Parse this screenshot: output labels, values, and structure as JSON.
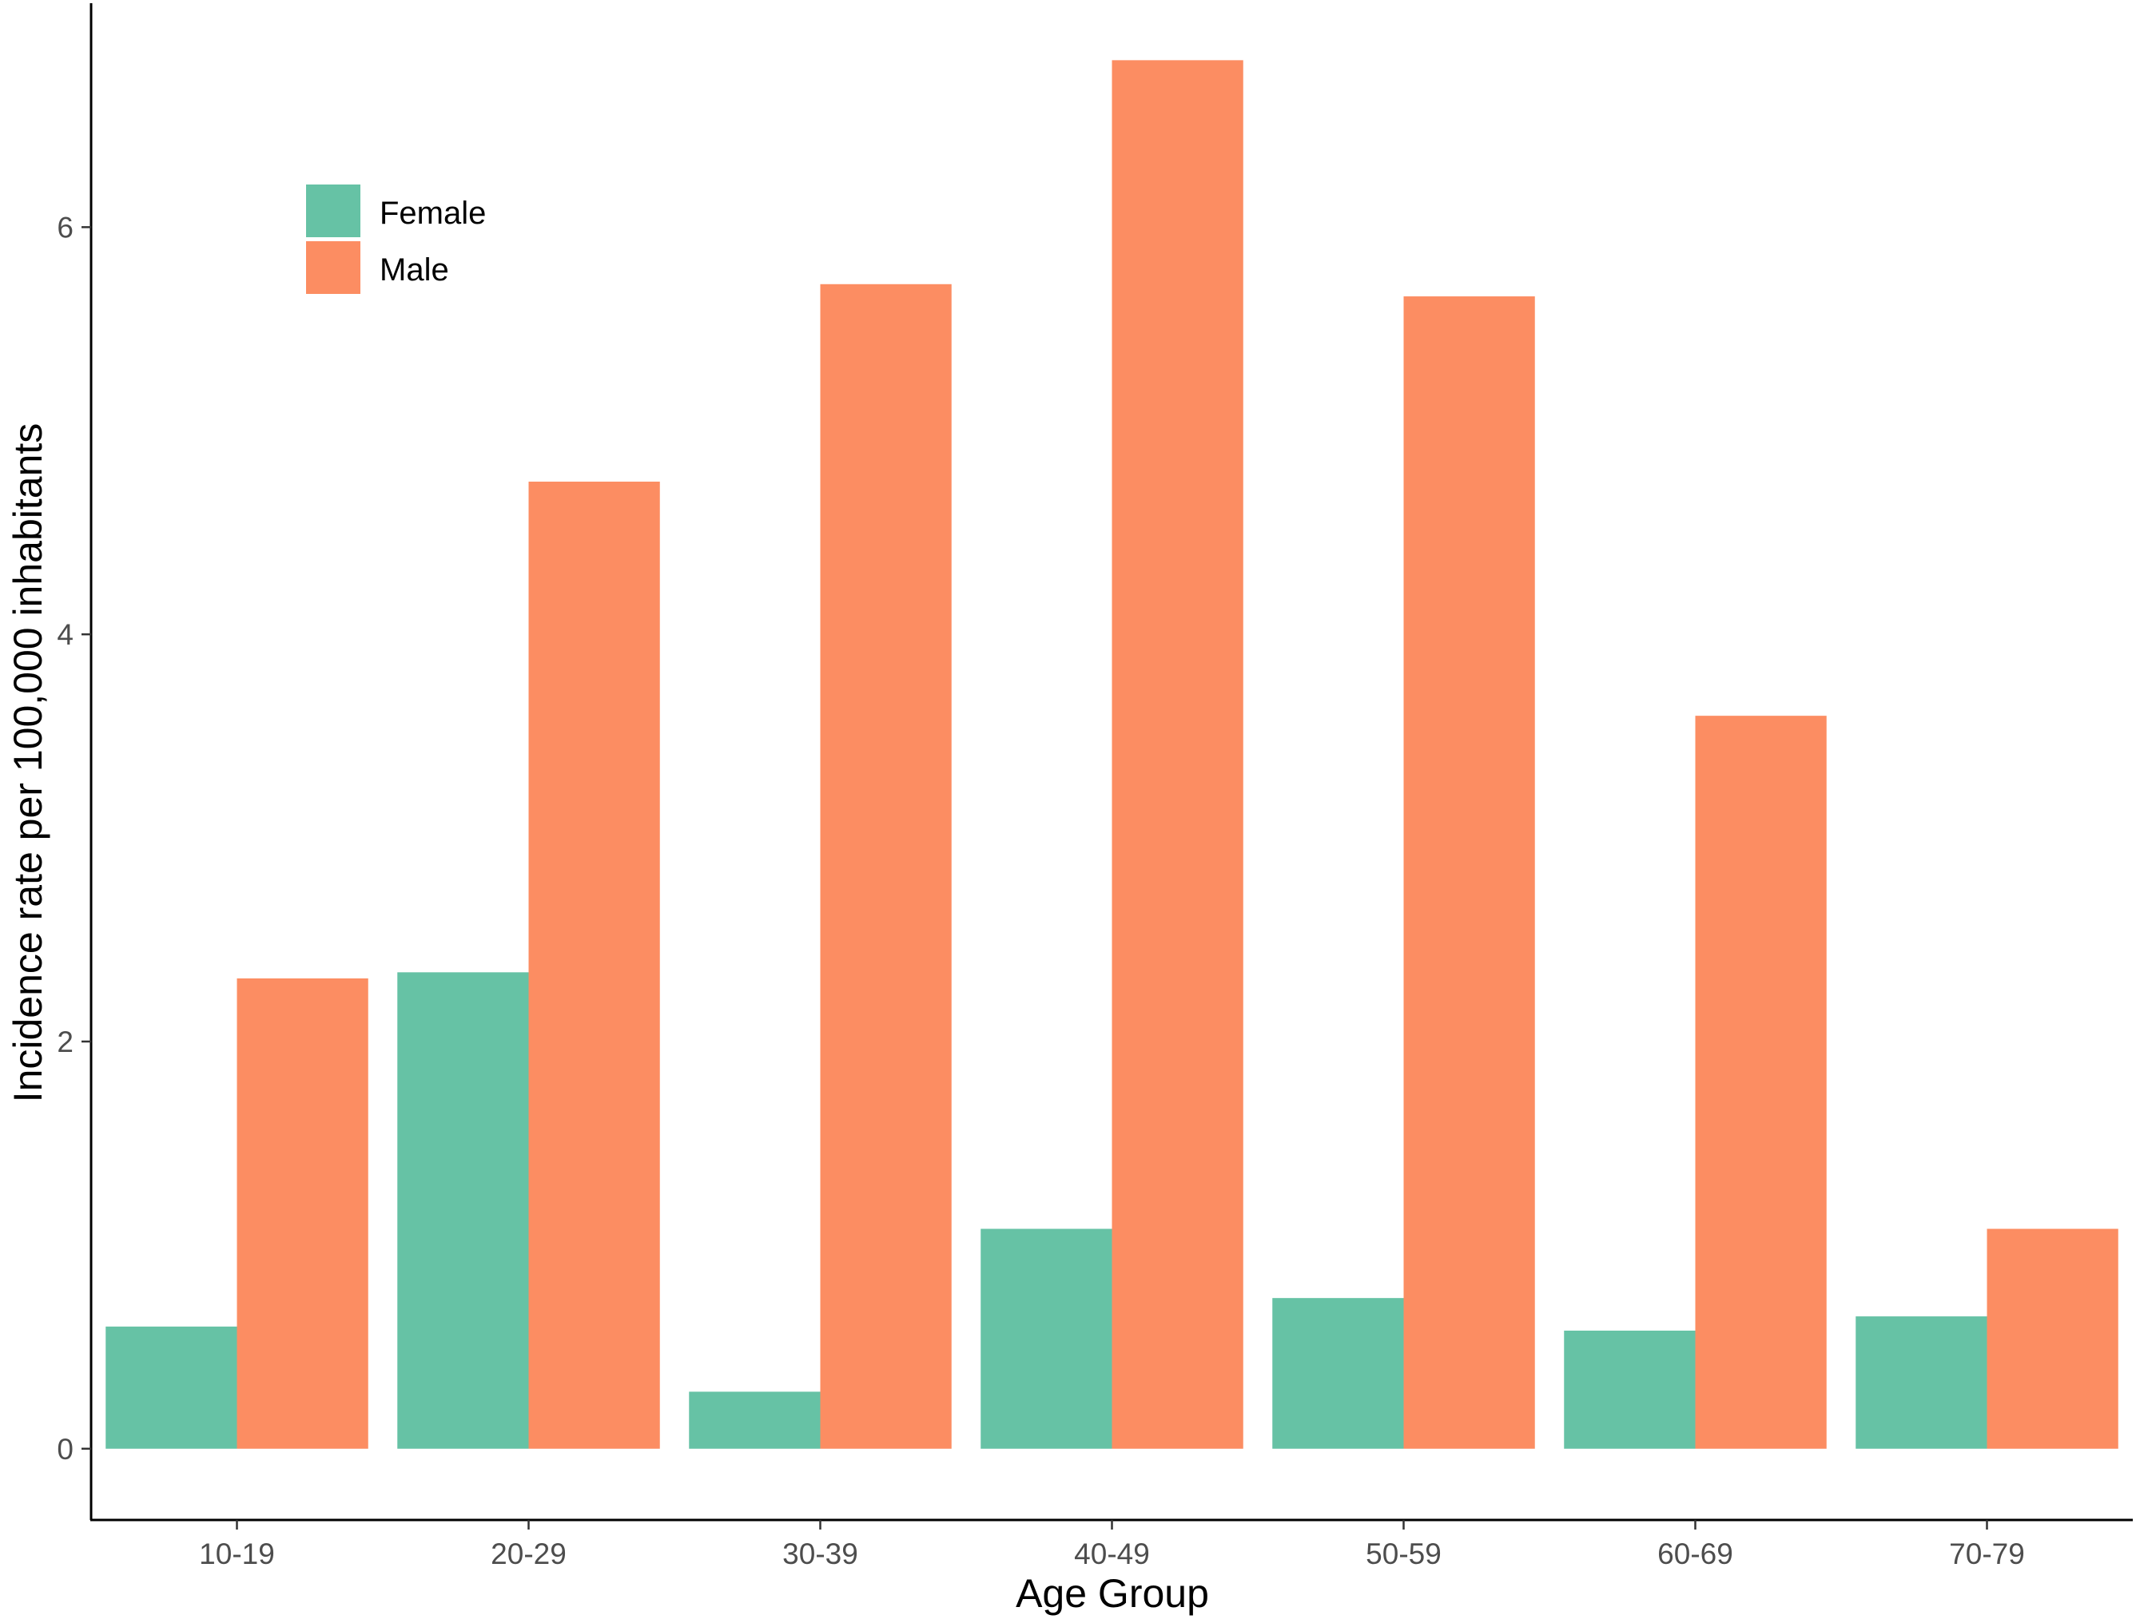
{
  "chart_data": {
    "type": "bar",
    "xlabel": "Age Group",
    "ylabel": "Incidence rate per 100,000 inhabitants",
    "categories": [
      "10-19",
      "20-29",
      "30-39",
      "40-49",
      "50-59",
      "60-69",
      "70-79"
    ],
    "series": [
      {
        "name": "Female",
        "color": "#66C2A5",
        "values": [
          0.6,
          2.34,
          0.28,
          1.08,
          0.74,
          0.58,
          0.65
        ]
      },
      {
        "name": "Male",
        "color": "#FC8D62",
        "values": [
          2.31,
          4.75,
          5.72,
          6.82,
          5.66,
          3.6,
          1.08
        ]
      }
    ],
    "ylim": [
      -0.35,
      7.1
    ],
    "yticks": [
      0,
      2,
      4,
      6
    ],
    "ytick_labels": [
      "0",
      "2",
      "4",
      "6"
    ],
    "grid": false,
    "legend_position": "top-left",
    "legend_labels": [
      "Female",
      "Male"
    ]
  }
}
